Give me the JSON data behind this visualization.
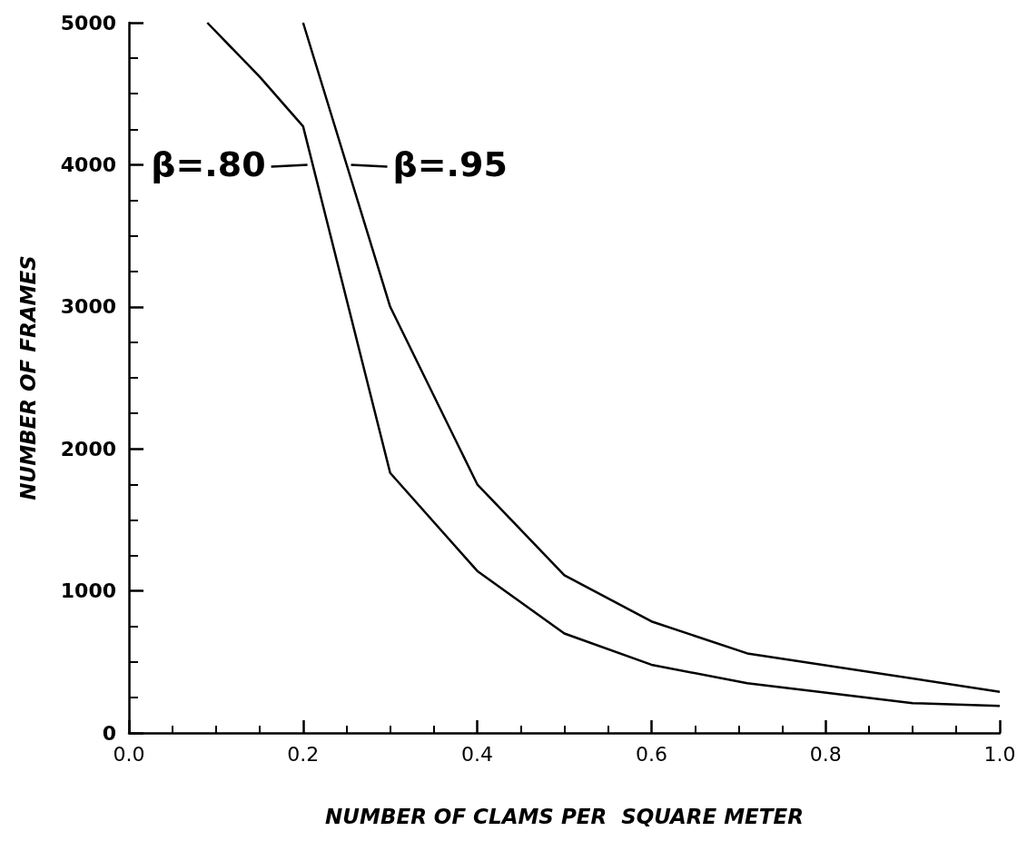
{
  "chart_data": {
    "type": "line",
    "xlabel": "NUMBER OF CLAMS PER  SQUARE METER",
    "ylabel": "NUMBER OF FRAMES",
    "series": [
      {
        "color": "#000000",
        "x": [
          0.09,
          0.15,
          0.2,
          0.3,
          0.4,
          0.5,
          0.6,
          0.71,
          0.9,
          1.0
        ],
        "values": [
          5000,
          4620,
          4270,
          1830,
          1140,
          700,
          480,
          350,
          210,
          190
        ]
      },
      {
        "color": "#000000",
        "x": [
          0.2,
          0.3,
          0.4,
          0.5,
          0.6,
          0.71,
          1.0
        ],
        "values": [
          5000,
          3000,
          1750,
          1110,
          785,
          560,
          290
        ]
      }
    ],
    "annotations": [
      {
        "text": "β=.80",
        "x": 0.205,
        "y": 4000
      },
      {
        "text": "β=.95",
        "x": 0.255,
        "y": 4000
      }
    ],
    "xlim": [
      0,
      1
    ],
    "ylim": [
      0,
      5000
    ],
    "xticks": [
      {
        "value": 0,
        "label": "0.0"
      },
      0.2,
      0.4,
      0.6,
      0.8,
      {
        "value": 1,
        "label": "1.0"
      }
    ],
    "yticks": [
      0,
      1000,
      2000,
      3000,
      4000,
      5000
    ],
    "grid": false,
    "marker": "none",
    "line_style": "solid"
  }
}
